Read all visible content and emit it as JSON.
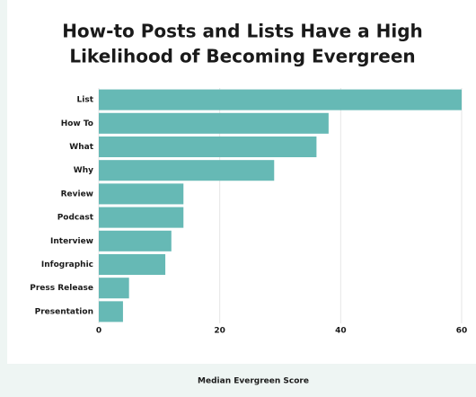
{
  "chart_data": {
    "type": "bar",
    "orientation": "horizontal",
    "title": [
      "How-to Posts and Lists Have a High",
      "Likelihood of Becoming Evergreen"
    ],
    "categories": [
      "List",
      "How To",
      "What",
      "Why",
      "Review",
      "Podcast",
      "Interview",
      "Infographic",
      "Press Release",
      "Presentation"
    ],
    "values": [
      60,
      38,
      36,
      29,
      14,
      14,
      12,
      11,
      5,
      4
    ],
    "color": "#66b9b5",
    "xlim": [
      0,
      60
    ],
    "xticks": [
      0,
      20,
      40,
      60
    ],
    "grid": true,
    "x_label": "Median Evergreen Score"
  }
}
